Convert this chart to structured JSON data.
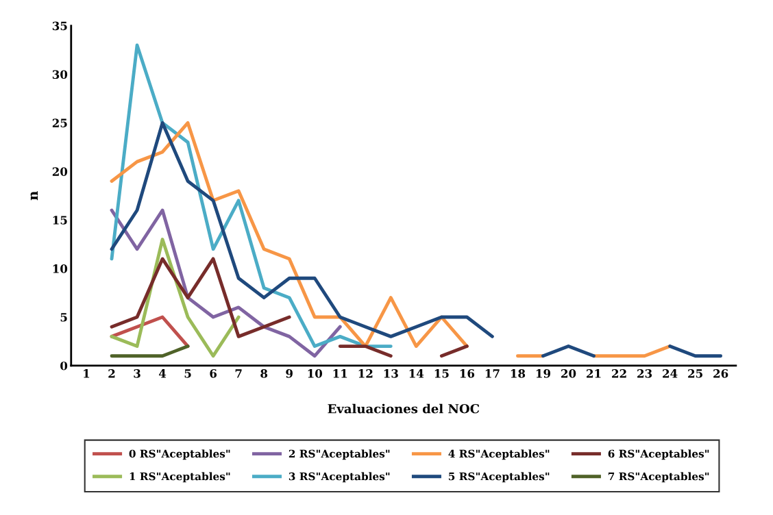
{
  "chart_data": {
    "type": "line",
    "xlabel": "Evaluaciones del NOC",
    "ylabel": "n",
    "categories": [
      "1",
      "2",
      "3",
      "4",
      "5",
      "6",
      "7",
      "8",
      "9",
      "10",
      "11",
      "12",
      "13",
      "14",
      "15",
      "16",
      "17",
      "18",
      "19",
      "20",
      "21",
      "22",
      "23",
      "24",
      "25",
      "26"
    ],
    "ylim": [
      0,
      35
    ],
    "yticks": [
      0,
      5,
      10,
      15,
      20,
      25,
      30,
      35
    ],
    "grid": false,
    "legend": "bottom",
    "marker": "none",
    "line_style": "solid",
    "series": [
      {
        "name": "0 RS\"Aceptables\"",
        "color": "#c0504d",
        "values": [
          null,
          3,
          4,
          5,
          2,
          null,
          null,
          null,
          null,
          null,
          null,
          null,
          null,
          null,
          null,
          null,
          null,
          null,
          null,
          null,
          null,
          null,
          null,
          null,
          null,
          null
        ]
      },
      {
        "name": "1 RS\"Aceptables\"",
        "color": "#9bbb59",
        "values": [
          null,
          3,
          2,
          13,
          5,
          1,
          5,
          null,
          null,
          null,
          null,
          null,
          null,
          null,
          null,
          null,
          null,
          null,
          null,
          null,
          null,
          null,
          null,
          null,
          null,
          null
        ]
      },
      {
        "name": "2 RS\"Aceptables\"",
        "color": "#8064a2",
        "values": [
          null,
          16,
          12,
          16,
          7,
          5,
          6,
          4,
          3,
          1,
          4,
          null,
          null,
          null,
          null,
          null,
          null,
          null,
          null,
          null,
          null,
          null,
          null,
          null,
          null,
          null
        ]
      },
      {
        "name": "3 RS\"Aceptables\"",
        "color": "#4bacc6",
        "values": [
          null,
          11,
          33,
          25,
          23,
          12,
          17,
          8,
          7,
          2,
          3,
          2,
          2,
          null,
          null,
          null,
          null,
          null,
          null,
          null,
          null,
          null,
          null,
          null,
          null,
          null
        ]
      },
      {
        "name": "4 RS\"Aceptables\"",
        "color": "#f79646",
        "values": [
          null,
          19,
          21,
          22,
          25,
          17,
          18,
          12,
          11,
          5,
          5,
          2,
          7,
          2,
          5,
          2,
          null,
          1,
          1,
          null,
          1,
          1,
          1,
          2,
          null,
          null
        ]
      },
      {
        "name": "5 RS\"Aceptables\"",
        "color": "#1f497d",
        "values": [
          null,
          12,
          16,
          25,
          19,
          17,
          9,
          7,
          9,
          9,
          5,
          4,
          3,
          4,
          5,
          5,
          3,
          null,
          1,
          2,
          1,
          null,
          null,
          2,
          1,
          1
        ]
      },
      {
        "name": "6 RS\"Aceptables\"",
        "color": "#772c2a",
        "values": [
          null,
          4,
          5,
          11,
          7,
          11,
          3,
          4,
          5,
          null,
          2,
          2,
          1,
          null,
          1,
          2,
          null,
          null,
          null,
          null,
          null,
          null,
          null,
          null,
          null,
          null
        ]
      },
      {
        "name": "7 RS\"Aceptables\"",
        "color": "#4f6228",
        "values": [
          null,
          1,
          1,
          1,
          2,
          null,
          null,
          null,
          null,
          null,
          null,
          null,
          null,
          null,
          null,
          null,
          null,
          null,
          null,
          null,
          null,
          null,
          null,
          null,
          null,
          null
        ]
      }
    ]
  }
}
